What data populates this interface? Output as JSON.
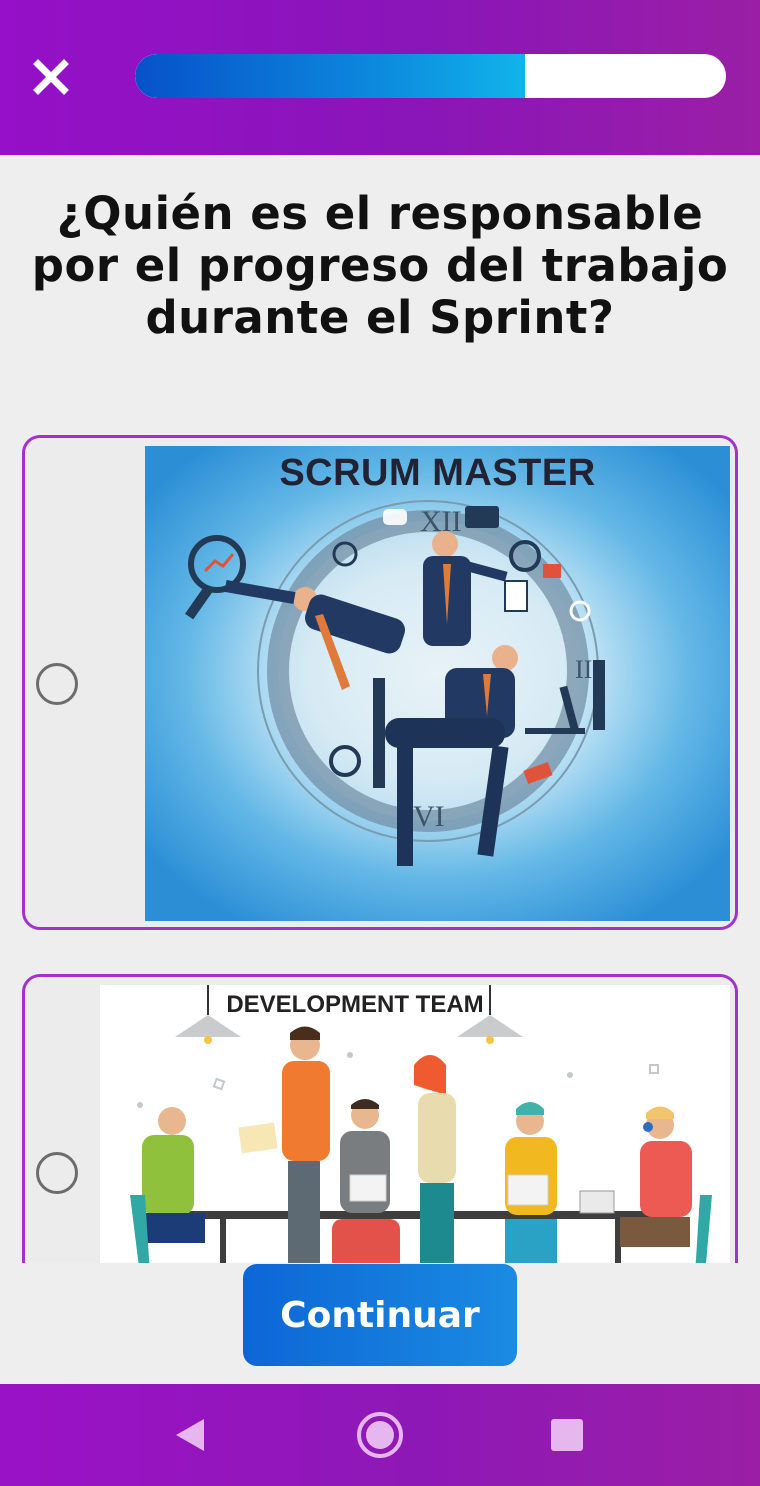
{
  "header": {
    "close_icon": "close-icon",
    "progress": 0.66,
    "progress_colors": [
      "#0751c9",
      "#10b4ea"
    ]
  },
  "question": {
    "text": "¿Quién es el responsable por el progreso del trabajo durante el Sprint?"
  },
  "options": [
    {
      "label": "SCRUM MASTER",
      "selected": false,
      "image": "scrum-master-illustration"
    },
    {
      "label": "DEVELOPMENT TEAM",
      "selected": false,
      "image": "development-team-illustration"
    }
  ],
  "continue_button": {
    "label": "Continuar"
  },
  "nav_bar": {
    "buttons": [
      "back-icon",
      "home-icon",
      "recents-icon"
    ]
  },
  "colors": {
    "header_bg": "#9510c8",
    "card_border": "#a232cd",
    "button_bg": "#1a8be2",
    "page_bg": "#eeeeee"
  }
}
